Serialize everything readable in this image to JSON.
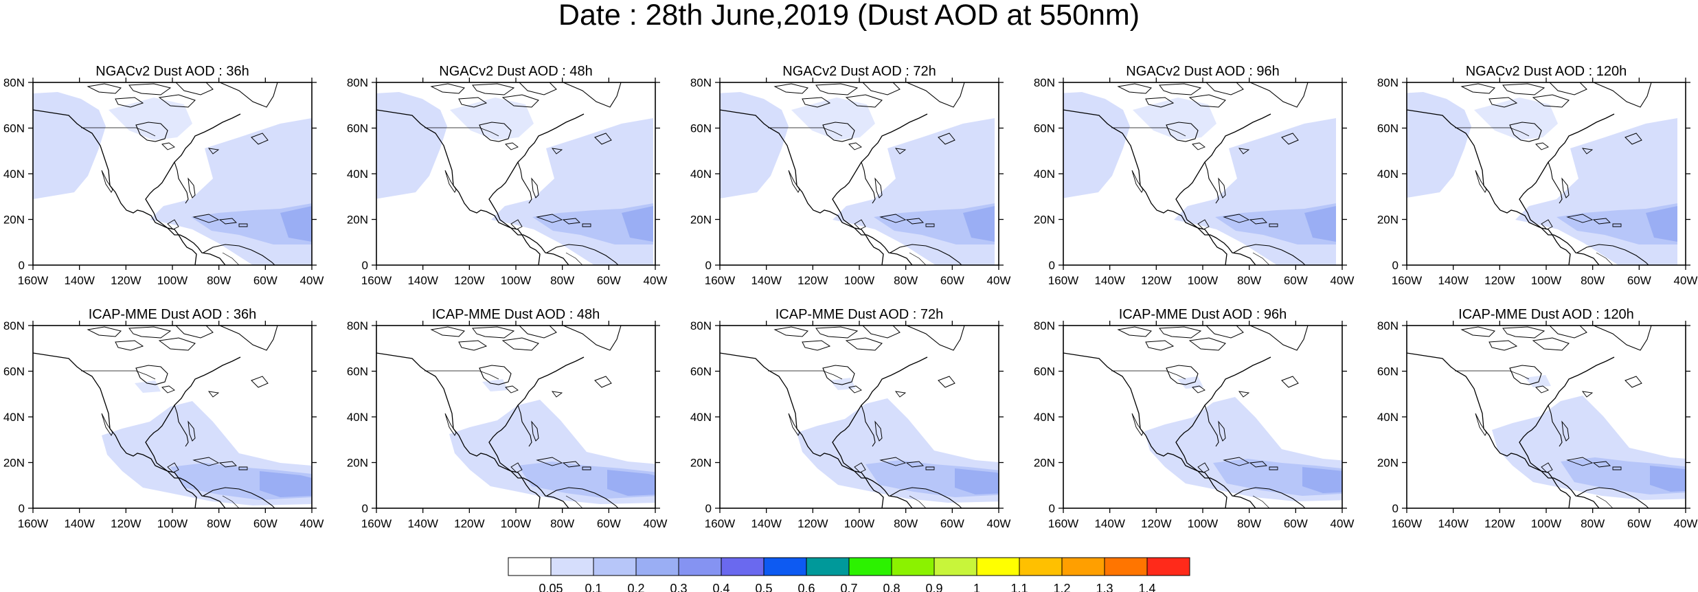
{
  "figure": {
    "title": "Date : 28th June,2019 (Dust AOD at 550nm)"
  },
  "panels": [
    {
      "title": "NGACv2 Dust AOD : 36h"
    },
    {
      "title": "NGACv2 Dust AOD : 48h"
    },
    {
      "title": "NGACv2 Dust AOD : 72h"
    },
    {
      "title": "NGACv2 Dust AOD : 96h"
    },
    {
      "title": "NGACv2 Dust AOD : 120h"
    },
    {
      "title": "ICAP-MME Dust AOD : 36h"
    },
    {
      "title": "ICAP-MME Dust AOD : 48h"
    },
    {
      "title": "ICAP-MME Dust AOD : 72h"
    },
    {
      "title": "ICAP-MME Dust AOD : 96h"
    },
    {
      "title": "ICAP-MME Dust AOD : 120h"
    }
  ],
  "axes": {
    "lon_ticks": [
      "160W",
      "140W",
      "120W",
      "100W",
      "80W",
      "60W",
      "40W"
    ],
    "lat_ticks": [
      "80N",
      "60N",
      "40N",
      "20N",
      "0"
    ],
    "lon_range": [
      -160,
      -40
    ],
    "lat_range": [
      0,
      80
    ]
  },
  "colorbar": {
    "labels": [
      "0.05",
      "0.1",
      "0.2",
      "0.3",
      "0.4",
      "0.5",
      "0.6",
      "0.7",
      "0.8",
      "0.9",
      "1",
      "1.1",
      "1.2",
      "1.3",
      "1.4"
    ],
    "colors": [
      "#ffffff",
      "#d6defc",
      "#b7c6f9",
      "#9aaef4",
      "#8593f2",
      "#6a69ef",
      "#0d5af2",
      "#00999a",
      "#2cf200",
      "#8bf200",
      "#c8f53a",
      "#ffff00",
      "#ffc000",
      "#ff9f00",
      "#ff7500",
      "#ff2a1a"
    ]
  },
  "style": {
    "light_dust": "#d6defc",
    "medium_dust": "#b7c6f9",
    "heavy_dust": "#9aaef4",
    "very_heavy_dust": "#8593f2",
    "coastline": "#000000"
  }
}
